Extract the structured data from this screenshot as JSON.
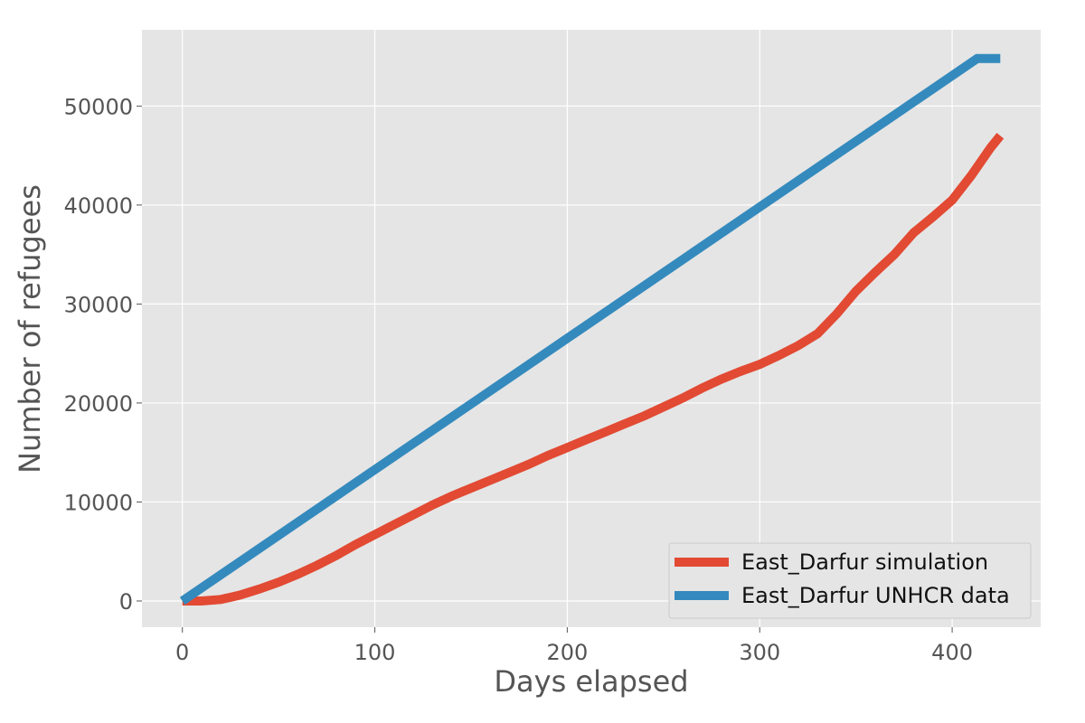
{
  "chart_data": {
    "type": "line",
    "title": "",
    "xlabel": "Days elapsed",
    "ylabel": "Number of refugees",
    "xlim": [
      -21,
      446
    ],
    "ylim": [
      -2650,
      57700
    ],
    "xticks": [
      0,
      100,
      200,
      300,
      400
    ],
    "yticks": [
      0,
      10000,
      20000,
      30000,
      40000,
      50000
    ],
    "grid": true,
    "legend_position": "lower right",
    "series": [
      {
        "name": "East_Darfur simulation",
        "color": "#e24a33",
        "x": [
          0,
          10,
          20,
          30,
          40,
          50,
          60,
          70,
          80,
          90,
          100,
          110,
          120,
          130,
          140,
          150,
          160,
          170,
          180,
          190,
          200,
          210,
          220,
          230,
          240,
          250,
          260,
          270,
          280,
          290,
          300,
          310,
          320,
          330,
          340,
          350,
          360,
          370,
          380,
          390,
          400,
          410,
          420,
          425
        ],
        "y": [
          0,
          0,
          150,
          600,
          1200,
          1900,
          2700,
          3600,
          4600,
          5700,
          6700,
          7700,
          8700,
          9700,
          10600,
          11400,
          12200,
          13000,
          13800,
          14700,
          15500,
          16300,
          17100,
          17900,
          18700,
          19600,
          20500,
          21500,
          22400,
          23200,
          23900,
          24800,
          25800,
          27000,
          29000,
          31300,
          33200,
          35000,
          37200,
          38800,
          40500,
          43000,
          45800,
          47000
        ]
      },
      {
        "name": "East_Darfur UNHCR data",
        "color": "#348abd",
        "x": [
          0,
          413,
          425
        ],
        "y": [
          0,
          54800,
          54800
        ]
      }
    ]
  }
}
